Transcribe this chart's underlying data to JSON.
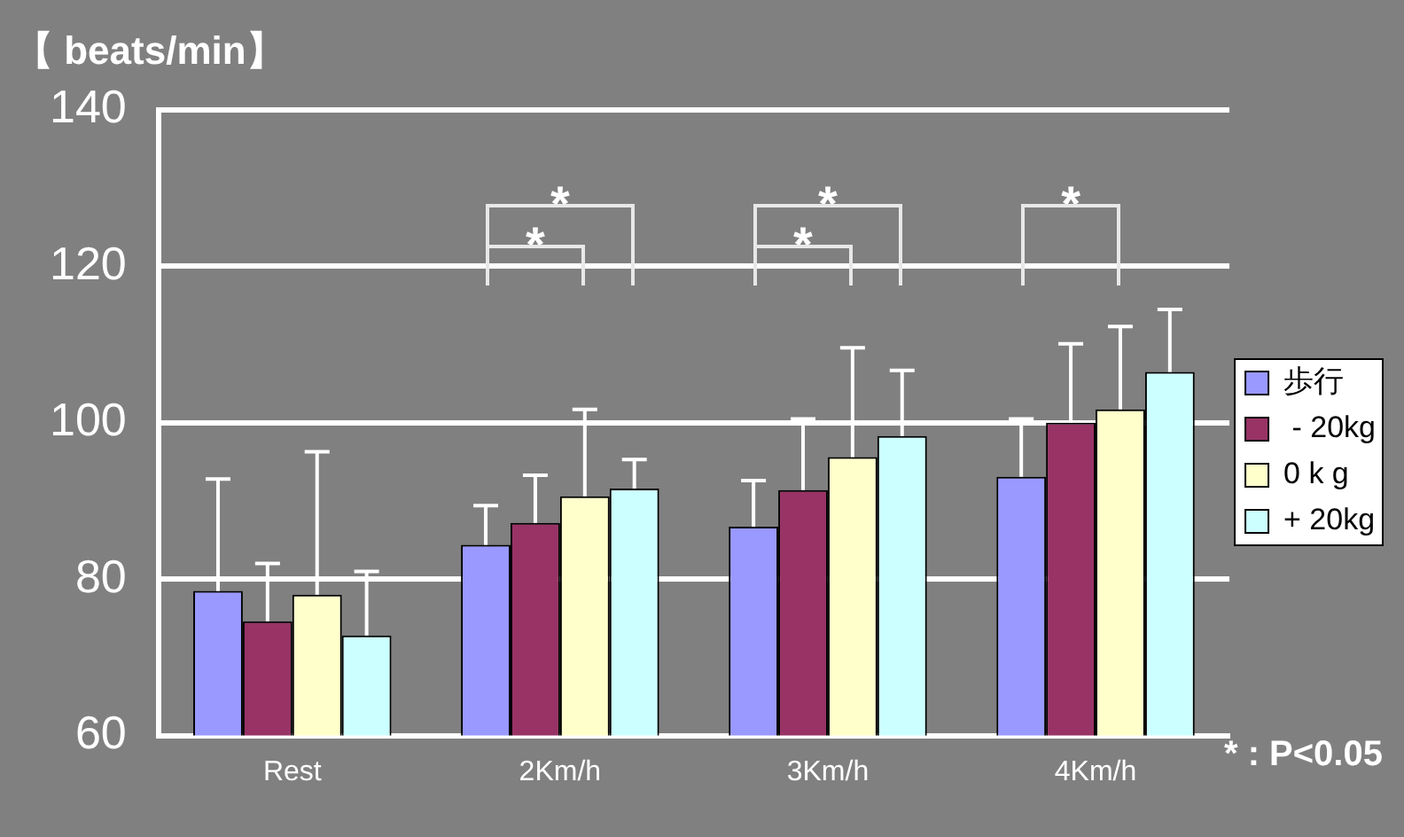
{
  "chart_data": {
    "type": "bar",
    "ylabel": "【 beats/min】",
    "categories": [
      "Rest",
      "2Km/h",
      "3Km/h",
      "4Km/h"
    ],
    "series": [
      {
        "name": "歩行",
        "color": "#9999ff",
        "values": [
          78.5,
          84.4,
          86.7,
          93.1
        ],
        "errors": [
          [
            78.5,
            92.8
          ],
          [
            84.4,
            89.4
          ],
          [
            86.7,
            92.6
          ],
          [
            93.1,
            100.5
          ]
        ]
      },
      {
        "name": " - 20kg",
        "color": "#993366",
        "values": [
          74.6,
          87.2,
          91.4,
          100
        ],
        "errors": [
          [
            74.6,
            82
          ],
          [
            87.2,
            93.3
          ],
          [
            91.4,
            100.5
          ],
          [
            100,
            110.1
          ]
        ]
      },
      {
        "name": "0 k g",
        "color": "#ffffcc",
        "values": [
          78,
          90.6,
          95.6,
          101.7
        ],
        "errors": [
          [
            78,
            96.3
          ],
          [
            90.6,
            101.7
          ],
          [
            95.6,
            109.6
          ],
          [
            101.7,
            112.3
          ]
        ]
      },
      {
        "name": "+ 20kg",
        "color": "#ccffff",
        "values": [
          72.8,
          91.6,
          98.3,
          106.5
        ],
        "errors": [
          [
            72.8,
            81
          ],
          [
            91.6,
            95.3
          ],
          [
            98.3,
            106.7
          ],
          [
            106.5,
            114.5
          ]
        ]
      }
    ],
    "ylim": [
      60,
      140
    ],
    "yticks": [
      60,
      80,
      100,
      120,
      140
    ],
    "grid": "y",
    "legend": "right",
    "annotations": [
      "*",
      "*",
      "*",
      "*",
      "*",
      "* : P<0.05"
    ]
  }
}
